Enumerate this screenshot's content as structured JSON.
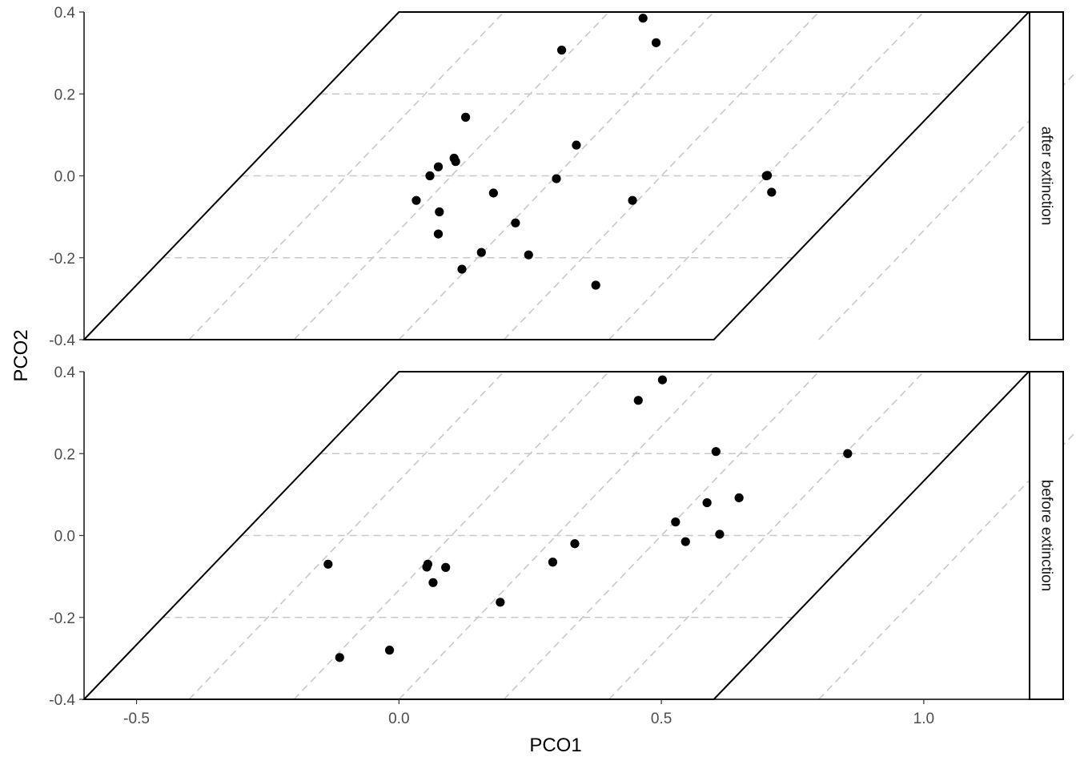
{
  "chart_data": {
    "type": "scatter",
    "xlabel": "PCO1",
    "ylabel": "PCO2",
    "xlim": [
      -0.6,
      1.2
    ],
    "ylim": [
      -0.4,
      0.4
    ],
    "x_ticks": [
      -0.5,
      0.0,
      0.5,
      1.0
    ],
    "x_tick_labels": [
      "-0.5",
      "0.0",
      "0.5",
      "1.0"
    ],
    "y_ticks": [
      -0.4,
      -0.2,
      0.0,
      0.2,
      0.4
    ],
    "y_tick_labels": [
      "-0.4",
      "-0.2",
      "0.0",
      "0.2",
      "0.4"
    ],
    "grid": "dashed",
    "panel_outline": "parallelogram",
    "panels": [
      {
        "label": "after extinction",
        "points": [
          {
            "x": 0.465,
            "y": 0.385
          },
          {
            "x": 0.49,
            "y": 0.325
          },
          {
            "x": 0.31,
            "y": 0.307
          },
          {
            "x": 0.127,
            "y": 0.143
          },
          {
            "x": 0.338,
            "y": 0.075
          },
          {
            "x": 0.105,
            "y": 0.043
          },
          {
            "x": 0.108,
            "y": 0.035
          },
          {
            "x": 0.075,
            "y": 0.022
          },
          {
            "x": 0.059,
            "y": 0.0
          },
          {
            "x": 0.3,
            "y": -0.007
          },
          {
            "x": 0.7,
            "y": 0.0
          },
          {
            "x": 0.702,
            "y": 0.001
          },
          {
            "x": 0.71,
            "y": -0.04
          },
          {
            "x": 0.18,
            "y": -0.042
          },
          {
            "x": 0.033,
            "y": -0.06
          },
          {
            "x": 0.445,
            "y": -0.06
          },
          {
            "x": 0.077,
            "y": -0.088
          },
          {
            "x": 0.222,
            "y": -0.115
          },
          {
            "x": 0.075,
            "y": -0.142
          },
          {
            "x": 0.157,
            "y": -0.187
          },
          {
            "x": 0.247,
            "y": -0.193
          },
          {
            "x": 0.12,
            "y": -0.228
          },
          {
            "x": 0.375,
            "y": -0.267
          }
        ]
      },
      {
        "label": "before extinction",
        "points": [
          {
            "x": 0.502,
            "y": 0.38
          },
          {
            "x": 0.456,
            "y": 0.33
          },
          {
            "x": 0.604,
            "y": 0.205
          },
          {
            "x": 0.855,
            "y": 0.2
          },
          {
            "x": 0.648,
            "y": 0.092
          },
          {
            "x": 0.587,
            "y": 0.08
          },
          {
            "x": 0.527,
            "y": 0.033
          },
          {
            "x": 0.611,
            "y": 0.003
          },
          {
            "x": 0.546,
            "y": -0.015
          },
          {
            "x": 0.335,
            "y": -0.02
          },
          {
            "x": 0.293,
            "y": -0.065
          },
          {
            "x": -0.135,
            "y": -0.07
          },
          {
            "x": 0.055,
            "y": -0.07
          },
          {
            "x": 0.053,
            "y": -0.077
          },
          {
            "x": 0.089,
            "y": -0.078
          },
          {
            "x": 0.065,
            "y": -0.115
          },
          {
            "x": 0.193,
            "y": -0.163
          },
          {
            "x": -0.018,
            "y": -0.28
          },
          {
            "x": -0.113,
            "y": -0.298
          }
        ]
      }
    ]
  }
}
